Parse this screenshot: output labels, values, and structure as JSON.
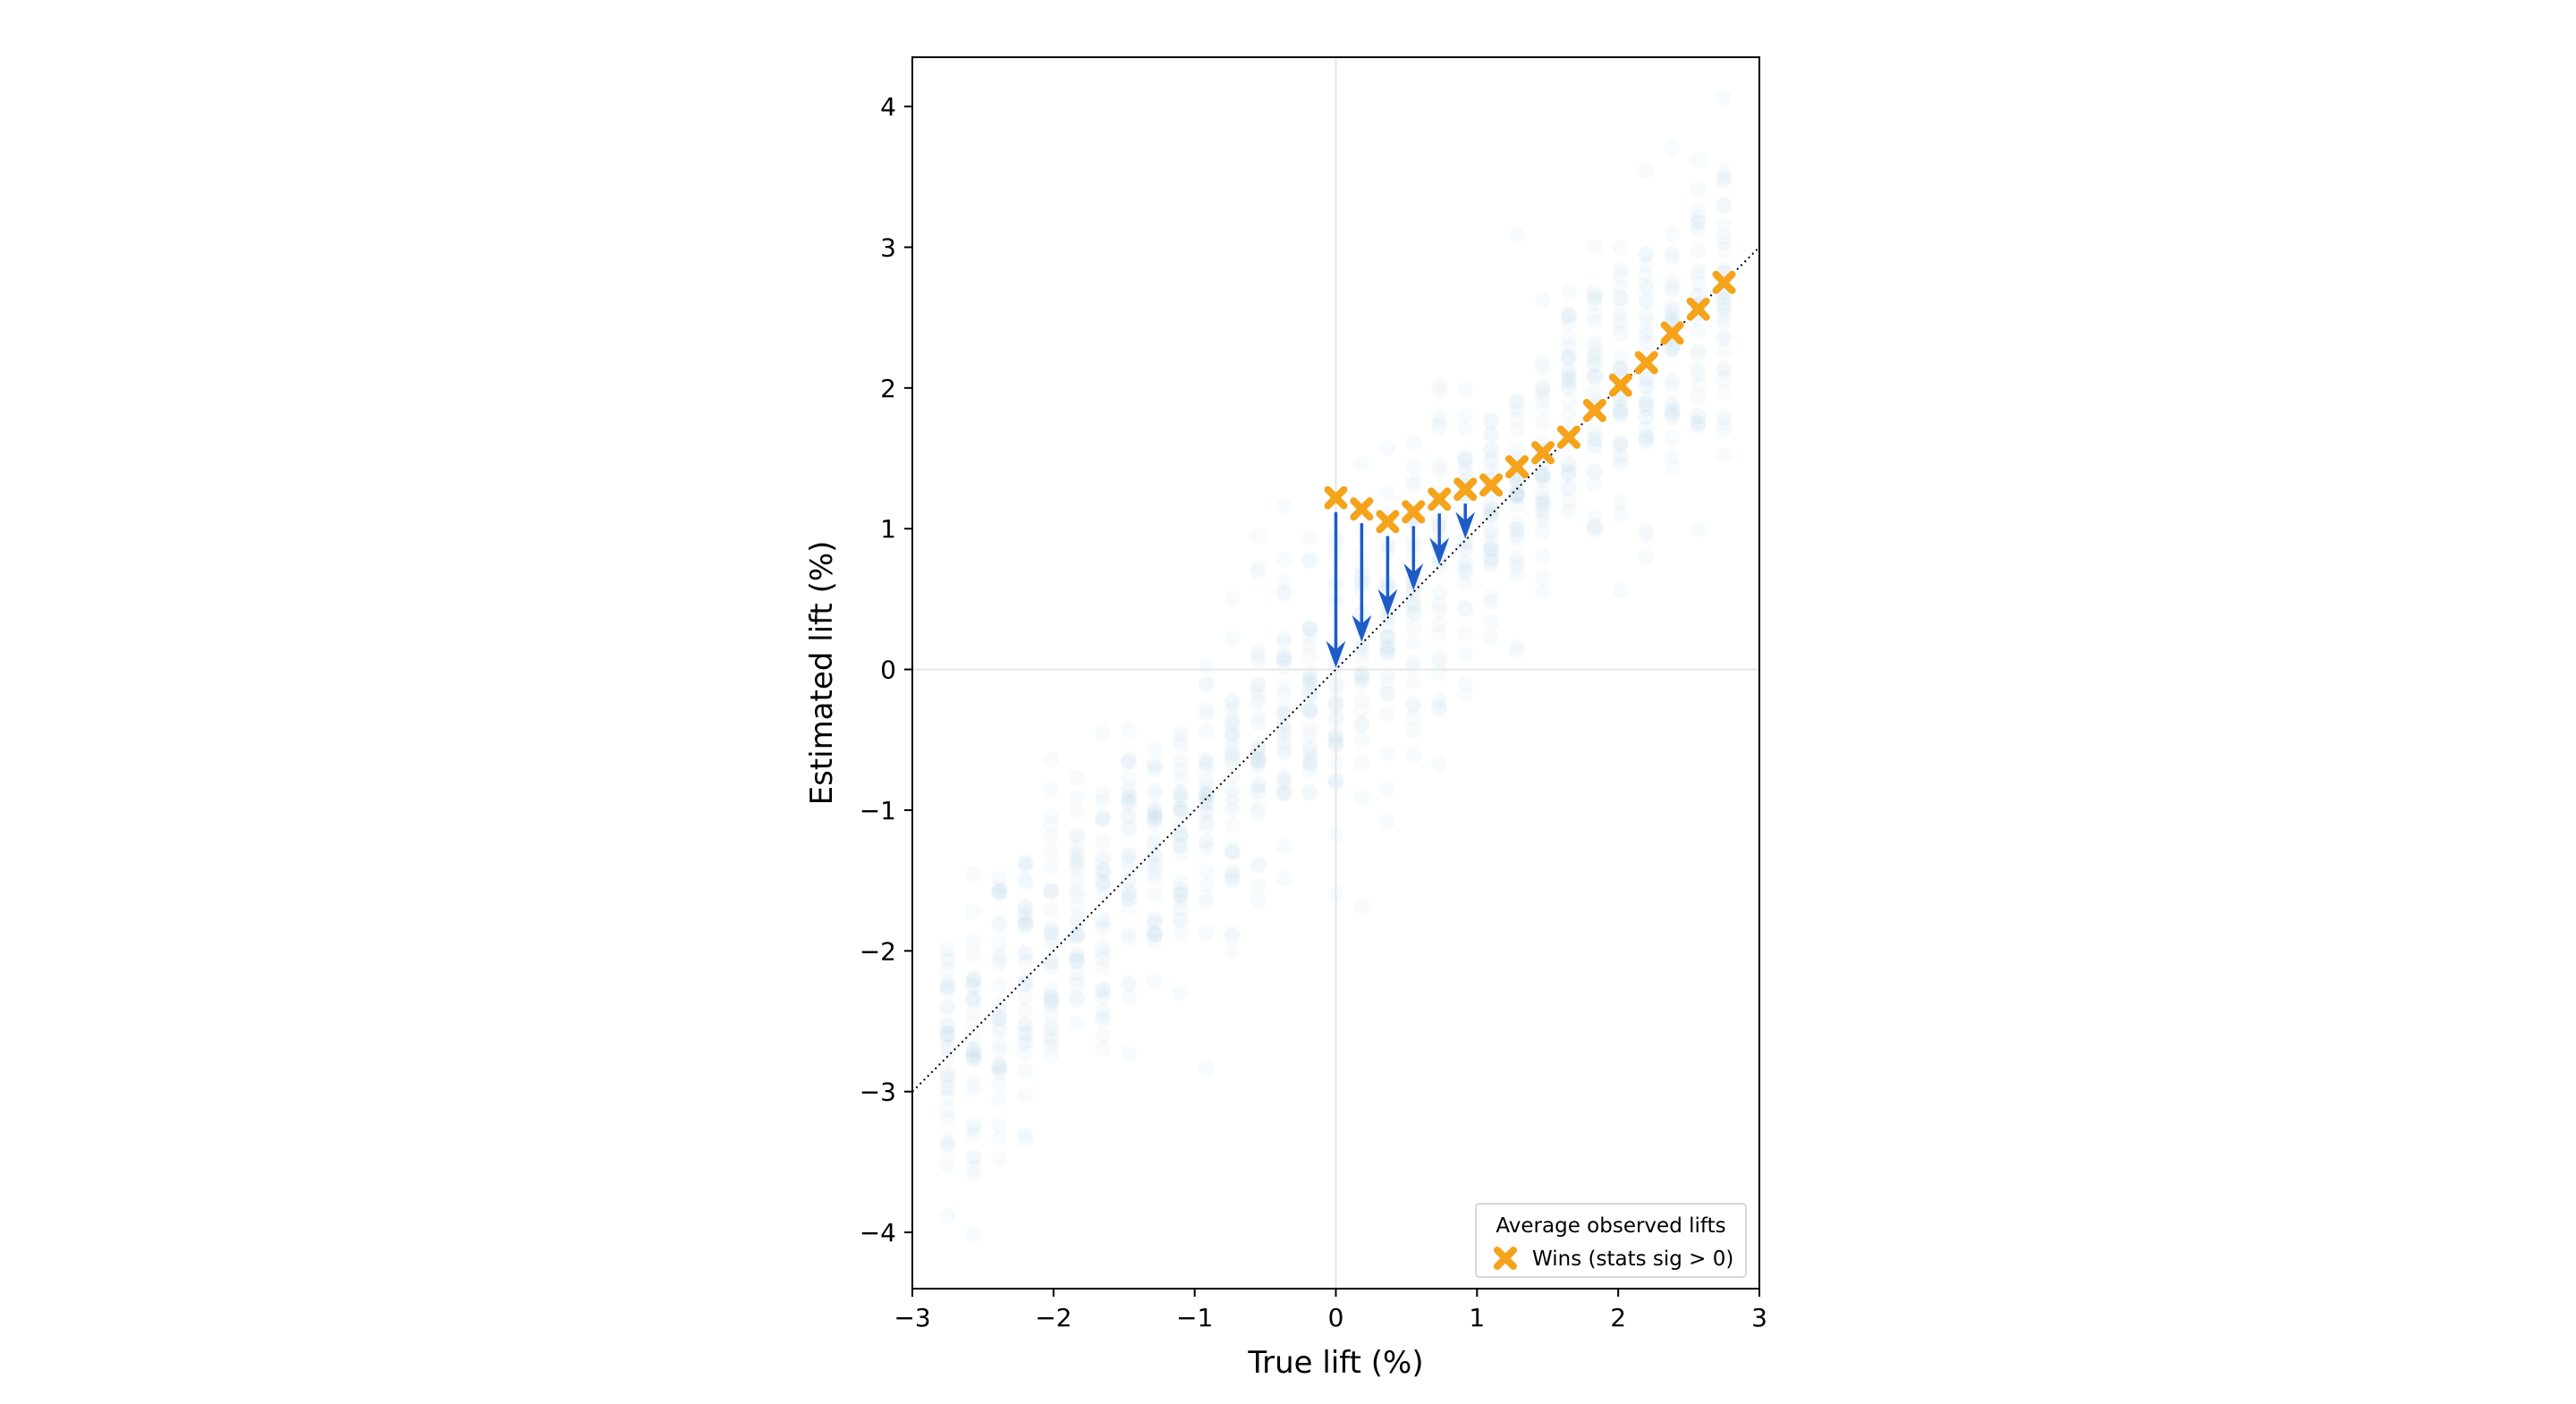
{
  "chart_data": {
    "type": "scatter",
    "title": "",
    "xlabel": "True lift (%)",
    "ylabel": "Estimated lift (%)",
    "xlim": [
      -3.0,
      3.0
    ],
    "ylim": [
      -4.4,
      4.35
    ],
    "xticks": [
      -3,
      -2,
      -1,
      0,
      1,
      2,
      3
    ],
    "xtick_labels": [
      "−3",
      "−2",
      "−1",
      "0",
      "1",
      "2",
      "3"
    ],
    "yticks": [
      -4,
      -3,
      -2,
      -1,
      0,
      1,
      2,
      3,
      4
    ],
    "ytick_labels": [
      "−4",
      "−3",
      "−2",
      "−1",
      "0",
      "1",
      "2",
      "3",
      "4"
    ],
    "grid": false,
    "reference_lines": {
      "x": 0,
      "y": 0
    },
    "identity_line": true,
    "legend": {
      "title": "Average observed lifts",
      "location": "lower-right",
      "entries": [
        "Wins (stats sig > 0)"
      ]
    },
    "colors": {
      "scatter": "#add8e6",
      "wins": "#f5a31a",
      "arrows": "#1f5bc7",
      "identity": "#000000",
      "reference": "#e6e6e6"
    },
    "simulated_experiments": {
      "true_lift_range": [
        -2.75,
        2.75
      ],
      "true_lift_step": 0.1833,
      "noise_sd": 0.55
    },
    "series": [
      {
        "name": "Wins (stats sig > 0)",
        "x": [
          0.0,
          0.183,
          0.367,
          0.55,
          0.733,
          0.917,
          1.1,
          1.283,
          1.467,
          1.65,
          1.833,
          2.017,
          2.2,
          2.383,
          2.567,
          2.75
        ],
        "y": [
          1.22,
          1.14,
          1.05,
          1.12,
          1.21,
          1.28,
          1.31,
          1.44,
          1.54,
          1.65,
          1.84,
          2.02,
          2.18,
          2.39,
          2.56,
          2.75
        ]
      }
    ],
    "arrows": [
      {
        "x": 0.0,
        "from": 1.22,
        "to": 0.0
      },
      {
        "x": 0.183,
        "from": 1.14,
        "to": 0.183
      },
      {
        "x": 0.367,
        "from": 1.05,
        "to": 0.367
      },
      {
        "x": 0.55,
        "from": 1.12,
        "to": 0.55
      },
      {
        "x": 0.733,
        "from": 1.21,
        "to": 0.733
      },
      {
        "x": 0.917,
        "from": 1.28,
        "to": 0.917
      }
    ]
  }
}
